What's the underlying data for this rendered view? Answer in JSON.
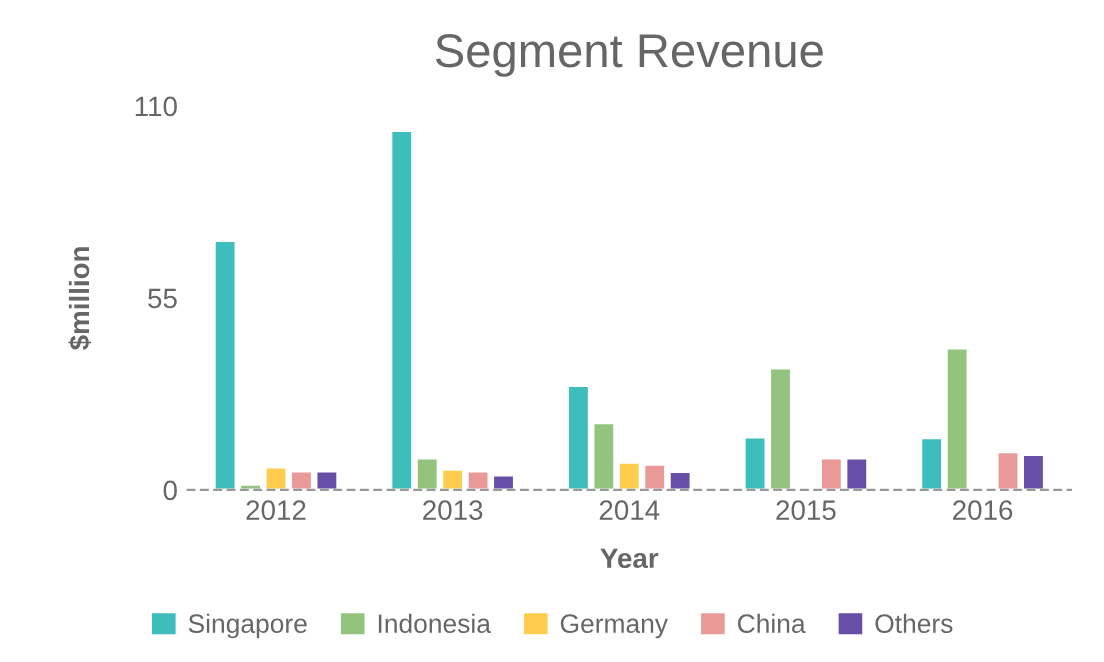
{
  "chart_data": {
    "type": "bar",
    "title": "Segment Revenue",
    "xlabel": "Year",
    "ylabel": "$million",
    "categories": [
      "2012",
      "2013",
      "2014",
      "2015",
      "2016"
    ],
    "series": [
      {
        "name": "Singapore",
        "color": "#3dbdbb",
        "values": [
          71.4,
          102.9,
          29.9,
          15.1,
          14.9
        ]
      },
      {
        "name": "Indonesia",
        "color": "#93c47d",
        "values": [
          1.6,
          9.1,
          19.2,
          34.9,
          40.6
        ]
      },
      {
        "name": "Germany",
        "color": "#ffcc4d",
        "values": [
          6.5,
          5.9,
          7.9,
          null,
          null
        ]
      },
      {
        "name": "China",
        "color": "#ea9999",
        "values": [
          5.4,
          5.4,
          7.3,
          9.1,
          10.9
        ]
      },
      {
        "name": "Others",
        "color": "#674ea7",
        "values": [
          5.4,
          4.2,
          5.2,
          9.1,
          10.1
        ]
      }
    ],
    "ylim": [
      0,
      110
    ],
    "yticks": [
      0,
      55,
      110
    ],
    "grid": false,
    "legend": "bottom"
  }
}
